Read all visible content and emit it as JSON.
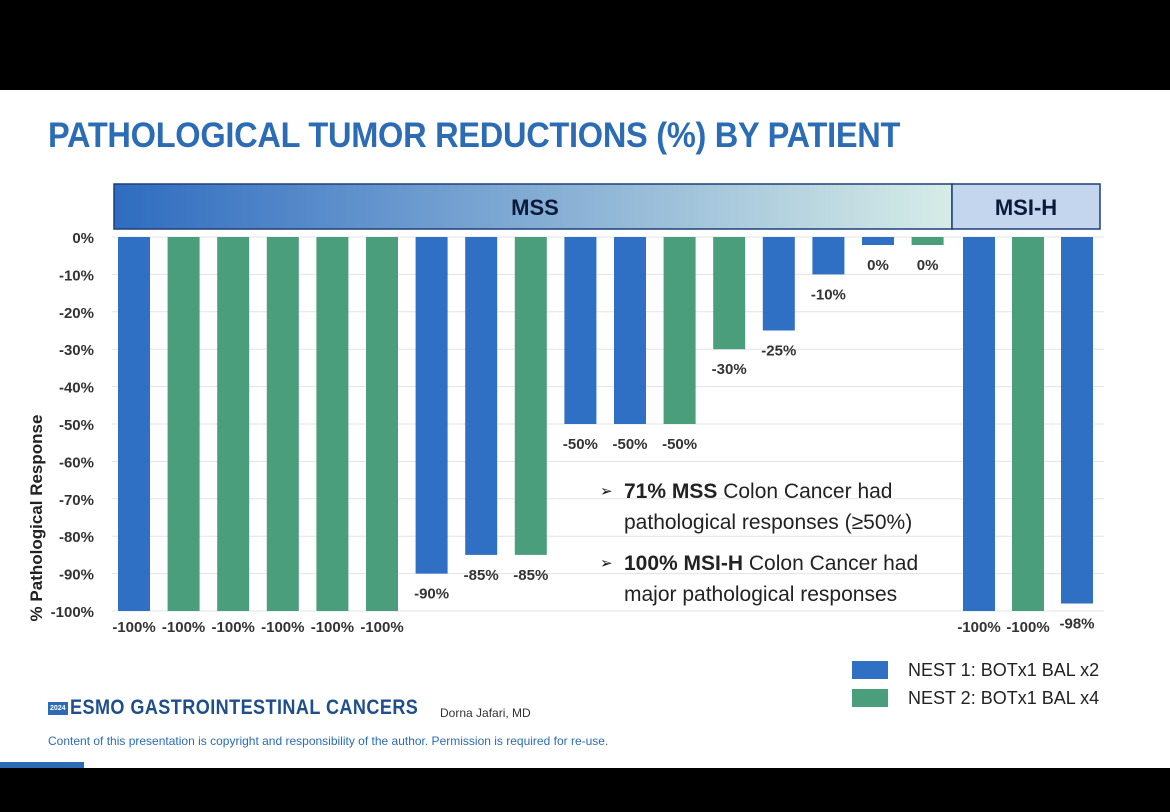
{
  "slide": {
    "title": "PATHOLOGICAL TUMOR REDUCTIONS (%) BY PATIENT",
    "bullets": [
      {
        "bold": "71% MSS",
        "line1": " Colon Cancer had",
        "line2": "pathological responses (≥50%)"
      },
      {
        "bold": "100% MSI-H",
        "line1": " Colon Cancer had",
        "line2": "major pathological responses"
      }
    ],
    "footer": {
      "logo_year": "2024",
      "logo_text": "ESMO GASTROINTESTINAL CANCERS",
      "author": "Dorna Jafari, MD",
      "copyright": "Content of this presentation is copyright and responsibility of the author. Permission is required for re-use."
    }
  },
  "colors": {
    "nest1": "#2f6fc4",
    "nest2": "#4a9e7c",
    "title": "#2b6cb4",
    "header_start": "#2f6cc0",
    "header_end": "#d6ece7",
    "msih_header": "#c4d6ee"
  },
  "chart_data": {
    "type": "bar",
    "ylabel": "% Pathological Response",
    "ylim": [
      -100,
      0
    ],
    "yticks": [
      0,
      -10,
      -20,
      -30,
      -40,
      -50,
      -60,
      -70,
      -80,
      -90,
      -100
    ],
    "ytick_labels": [
      "0%",
      "-10%",
      "-20%",
      "-30%",
      "-40%",
      "-50%",
      "-60%",
      "-70%",
      "-80%",
      "-90%",
      "-100%"
    ],
    "grid": true,
    "legend": {
      "position": "bottom-right",
      "entries": [
        {
          "name": "NEST 1: BOTx1 BAL x2",
          "color": "#2f6fc4"
        },
        {
          "name": "NEST 2: BOTx1 BAL x4",
          "color": "#4a9e7c"
        }
      ]
    },
    "groups": [
      {
        "name": "MSS",
        "bars": [
          {
            "value": -100,
            "label": "-100%",
            "series": "NEST 1: BOTx1 BAL x2"
          },
          {
            "value": -100,
            "label": "-100%",
            "series": "NEST 2: BOTx1 BAL x4"
          },
          {
            "value": -100,
            "label": "-100%",
            "series": "NEST 2: BOTx1 BAL x4"
          },
          {
            "value": -100,
            "label": "-100%",
            "series": "NEST 2: BOTx1 BAL x4"
          },
          {
            "value": -100,
            "label": "-100%",
            "series": "NEST 2: BOTx1 BAL x4"
          },
          {
            "value": -100,
            "label": "-100%",
            "series": "NEST 2: BOTx1 BAL x4"
          },
          {
            "value": -90,
            "label": "-90%",
            "series": "NEST 1: BOTx1 BAL x2"
          },
          {
            "value": -85,
            "label": "-85%",
            "series": "NEST 1: BOTx1 BAL x2"
          },
          {
            "value": -85,
            "label": "-85%",
            "series": "NEST 2: BOTx1 BAL x4"
          },
          {
            "value": -50,
            "label": "-50%",
            "series": "NEST 1: BOTx1 BAL x2"
          },
          {
            "value": -50,
            "label": "-50%",
            "series": "NEST 1: BOTx1 BAL x2"
          },
          {
            "value": -50,
            "label": "-50%",
            "series": "NEST 2: BOTx1 BAL x4"
          },
          {
            "value": -30,
            "label": "-30%",
            "series": "NEST 2: BOTx1 BAL x4"
          },
          {
            "value": -25,
            "label": "-25%",
            "series": "NEST 1: BOTx1 BAL x2"
          },
          {
            "value": -10,
            "label": "-10%",
            "series": "NEST 1: BOTx1 BAL x2"
          },
          {
            "value": 0,
            "label": "0%",
            "series": "NEST 1: BOTx1 BAL x2"
          },
          {
            "value": 0,
            "label": "0%",
            "series": "NEST 2: BOTx1 BAL x4"
          }
        ]
      },
      {
        "name": "MSI-H",
        "bars": [
          {
            "value": -100,
            "label": "-100%",
            "series": "NEST 1: BOTx1 BAL x2"
          },
          {
            "value": -100,
            "label": "-100%",
            "series": "NEST 2: BOTx1 BAL x4"
          },
          {
            "value": -98,
            "label": "-98%",
            "series": "NEST 1: BOTx1 BAL x2"
          }
        ]
      }
    ]
  }
}
